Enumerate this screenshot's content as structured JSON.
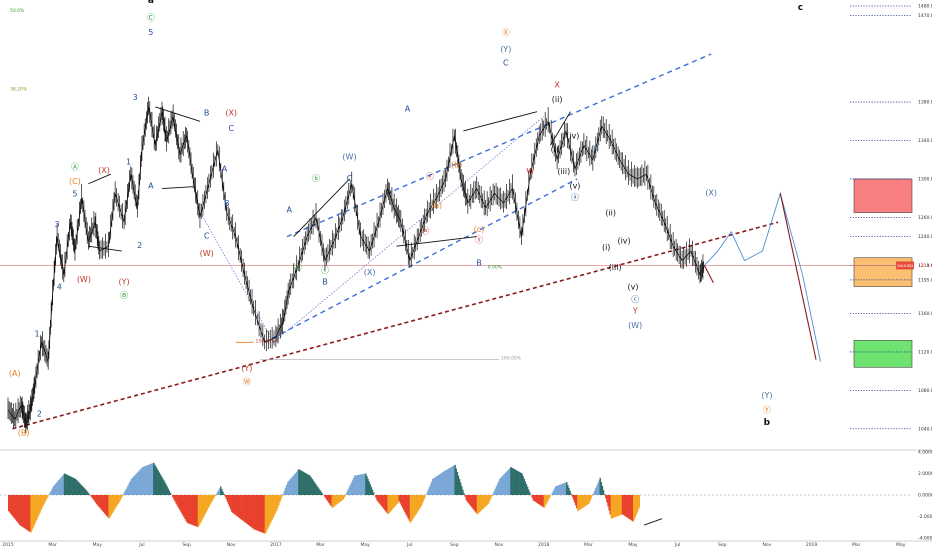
{
  "chart_data": {
    "type": "candlestick",
    "symbol_tag": "XAUUSD",
    "last_price_label": "1211.65",
    "price_axis": {
      "ylim": [
        1020,
        1480
      ],
      "ticks": [
        {
          "v": 1480,
          "label": "1480.00"
        },
        {
          "v": 1470,
          "label": "1470.00"
        },
        {
          "v": 1380,
          "label": "1380.00"
        },
        {
          "v": 1340,
          "label": "1340.00"
        },
        {
          "v": 1300,
          "label": "1300.00"
        },
        {
          "v": 1260,
          "label": "1260.00"
        },
        {
          "v": 1240,
          "label": "1240.00"
        },
        {
          "v": 1210,
          "label": "1210.00"
        },
        {
          "v": 1195,
          "label": "1195.00"
        },
        {
          "v": 1160,
          "label": "1160.00"
        },
        {
          "v": 1120,
          "label": "1120.00"
        },
        {
          "v": 1080,
          "label": "1080.00"
        },
        {
          "v": 1040,
          "label": "1040.00"
        }
      ]
    },
    "time_axis": [
      {
        "t": 0,
        "label": "2015"
      },
      {
        "t": 2,
        "label": "Mar"
      },
      {
        "t": 4,
        "label": "May"
      },
      {
        "t": 6,
        "label": "Jul"
      },
      {
        "t": 8,
        "label": "Sep"
      },
      {
        "t": 10,
        "label": "Nov"
      },
      {
        "t": 12,
        "label": "2017"
      },
      {
        "t": 14,
        "label": "Mar"
      },
      {
        "t": 16,
        "label": "May"
      },
      {
        "t": 18,
        "label": "Jul"
      },
      {
        "t": 20,
        "label": "Sep"
      },
      {
        "t": 22,
        "label": "Nov"
      },
      {
        "t": 24,
        "label": "2018"
      },
      {
        "t": 26,
        "label": "Mar"
      },
      {
        "t": 28,
        "label": "May"
      },
      {
        "t": 30,
        "label": "Jul"
      },
      {
        "t": 32,
        "label": "Sep"
      },
      {
        "t": 34,
        "label": "Nov"
      },
      {
        "t": 36,
        "label": "2019"
      },
      {
        "t": 38,
        "label": "Mar"
      },
      {
        "t": 40,
        "label": "May"
      }
    ],
    "price_path": [
      [
        0,
        1060
      ],
      [
        0.3,
        1050
      ],
      [
        0.6,
        1064
      ],
      [
        0.8,
        1045
      ],
      [
        1.0,
        1060
      ],
      [
        1.2,
        1085
      ],
      [
        1.5,
        1130
      ],
      [
        1.8,
        1110
      ],
      [
        2.0,
        1180
      ],
      [
        2.2,
        1240
      ],
      [
        2.5,
        1200
      ],
      [
        2.8,
        1255
      ],
      [
        3.0,
        1225
      ],
      [
        3.3,
        1280
      ],
      [
        3.6,
        1235
      ],
      [
        3.9,
        1255
      ],
      [
        4.1,
        1225
      ],
      [
        4.5,
        1230
      ],
      [
        4.8,
        1285
      ],
      [
        5.2,
        1255
      ],
      [
        5.5,
        1305
      ],
      [
        5.8,
        1270
      ],
      [
        6.0,
        1330
      ],
      [
        6.3,
        1375
      ],
      [
        6.6,
        1335
      ],
      [
        6.9,
        1370
      ],
      [
        7.1,
        1340
      ],
      [
        7.4,
        1365
      ],
      [
        7.7,
        1325
      ],
      [
        8.0,
        1345
      ],
      [
        8.3,
        1300
      ],
      [
        8.6,
        1260
      ],
      [
        9.0,
        1295
      ],
      [
        9.4,
        1330
      ],
      [
        9.8,
        1265
      ],
      [
        10.2,
        1240
      ],
      [
        10.6,
        1200
      ],
      [
        11.0,
        1165
      ],
      [
        11.5,
        1130
      ],
      [
        12.0,
        1135
      ],
      [
        12.3,
        1150
      ],
      [
        12.6,
        1185
      ],
      [
        13.0,
        1210
      ],
      [
        13.4,
        1240
      ],
      [
        13.8,
        1260
      ],
      [
        14.2,
        1215
      ],
      [
        14.6,
        1235
      ],
      [
        15.0,
        1260
      ],
      [
        15.4,
        1295
      ],
      [
        15.8,
        1240
      ],
      [
        16.2,
        1225
      ],
      [
        16.6,
        1255
      ],
      [
        17.0,
        1290
      ],
      [
        17.3,
        1270
      ],
      [
        17.6,
        1255
      ],
      [
        18.0,
        1215
      ],
      [
        18.4,
        1240
      ],
      [
        18.8,
        1265
      ],
      [
        19.2,
        1280
      ],
      [
        19.6,
        1300
      ],
      [
        20.0,
        1345
      ],
      [
        20.3,
        1300
      ],
      [
        20.6,
        1275
      ],
      [
        21.0,
        1290
      ],
      [
        21.4,
        1270
      ],
      [
        21.8,
        1285
      ],
      [
        22.2,
        1275
      ],
      [
        22.6,
        1290
      ],
      [
        23.0,
        1240
      ],
      [
        23.4,
        1305
      ],
      [
        23.8,
        1345
      ],
      [
        24.2,
        1360
      ],
      [
        24.6,
        1320
      ],
      [
        25.0,
        1350
      ],
      [
        25.4,
        1310
      ],
      [
        25.8,
        1335
      ],
      [
        26.2,
        1320
      ],
      [
        26.6,
        1355
      ],
      [
        27.0,
        1340
      ],
      [
        27.4,
        1320
      ],
      [
        27.8,
        1305
      ],
      [
        28.2,
        1300
      ],
      [
        28.6,
        1305
      ],
      [
        29.0,
        1275
      ],
      [
        29.4,
        1255
      ],
      [
        29.8,
        1230
      ],
      [
        30.2,
        1215
      ],
      [
        30.6,
        1225
      ],
      [
        31.0,
        1200
      ],
      [
        31.2,
        1210
      ]
    ],
    "elliott_labels": [
      {
        "text": "a",
        "t": 6.4,
        "p": 1483,
        "color": "#111",
        "bold": true
      },
      {
        "text": "Ⓒ",
        "t": 6.4,
        "p": 1465,
        "color": "#2e9e3b"
      },
      {
        "text": "5",
        "t": 6.4,
        "p": 1450,
        "color": "#1f4c9a"
      },
      {
        "text": "3",
        "t": 5.7,
        "p": 1382,
        "color": "#1f4c9a"
      },
      {
        "text": "B",
        "t": 8.9,
        "p": 1366,
        "color": "#1f4c9a"
      },
      {
        "text": "(X)",
        "t": 10.0,
        "p": 1366,
        "color": "#c0392b"
      },
      {
        "text": "C",
        "t": 10.0,
        "p": 1350,
        "color": "#1f4c9a"
      },
      {
        "text": "1",
        "t": 5.4,
        "p": 1315,
        "color": "#1f4c9a"
      },
      {
        "text": "A",
        "t": 6.4,
        "p": 1290,
        "color": "#1f4c9a"
      },
      {
        "text": "A",
        "t": 9.7,
        "p": 1308,
        "color": "#1f4c9a"
      },
      {
        "text": "B",
        "t": 9.8,
        "p": 1272,
        "color": "#1f4c9a"
      },
      {
        "text": "C",
        "t": 8.9,
        "p": 1238,
        "color": "#1f4c9a"
      },
      {
        "text": "(W)",
        "t": 8.9,
        "p": 1220,
        "color": "#c0392b"
      },
      {
        "text": "Ⓐ",
        "t": 3.0,
        "p": 1310,
        "color": "#2e9e3b"
      },
      {
        "text": "(C)",
        "t": 3.0,
        "p": 1295,
        "color": "#e67e22"
      },
      {
        "text": "5",
        "t": 3.0,
        "p": 1282,
        "color": "#1f4c9a"
      },
      {
        "text": "(X)",
        "t": 4.3,
        "p": 1306,
        "color": "#c0392b"
      },
      {
        "text": "3",
        "t": 2.2,
        "p": 1250,
        "color": "#1f4c9a"
      },
      {
        "text": "2",
        "t": 5.9,
        "p": 1228,
        "color": "#1f4c9a"
      },
      {
        "text": "(W)",
        "t": 3.4,
        "p": 1193,
        "color": "#c0392b"
      },
      {
        "text": "(Y)",
        "t": 5.2,
        "p": 1190,
        "color": "#c0392b"
      },
      {
        "text": "Ⓑ",
        "t": 5.2,
        "p": 1176,
        "color": "#2e9e3b"
      },
      {
        "text": "4",
        "t": 2.3,
        "p": 1185,
        "color": "#1f4c9a"
      },
      {
        "text": "1",
        "t": 1.3,
        "p": 1136,
        "color": "#1f4c9a"
      },
      {
        "text": "(A)",
        "t": 0.3,
        "p": 1095,
        "color": "#e67e22"
      },
      {
        "text": "2",
        "t": 1.4,
        "p": 1053,
        "color": "#1f4c9a"
      },
      {
        "text": "(B)",
        "t": 0.7,
        "p": 1033,
        "color": "#e67e22"
      },
      {
        "text": "(Y)",
        "t": 10.7,
        "p": 1100,
        "color": "#c0392b"
      },
      {
        "text": "Ⓦ",
        "t": 10.7,
        "p": 1086,
        "color": "#e67e22"
      },
      {
        "text": "(W)",
        "t": 15.3,
        "p": 1320,
        "color": "#4a6fa5"
      },
      {
        "text": "C",
        "t": 15.3,
        "p": 1298,
        "color": "#1f4c9a"
      },
      {
        "text": "ⓑ",
        "t": 13.8,
        "p": 1298,
        "color": "#2e9e3b"
      },
      {
        "text": "A",
        "t": 12.6,
        "p": 1265,
        "color": "#1f4c9a"
      },
      {
        "text": "ⓐ",
        "t": 13.0,
        "p": 1205,
        "color": "#2e9e3b"
      },
      {
        "text": "ⓒ",
        "t": 14.2,
        "p": 1202,
        "color": "#2e9e3b"
      },
      {
        "text": "B",
        "t": 14.2,
        "p": 1190,
        "color": "#1f4c9a"
      },
      {
        "text": "(X)",
        "t": 16.2,
        "p": 1200,
        "color": "#4a6fa5"
      },
      {
        "text": "A",
        "t": 17.9,
        "p": 1370,
        "color": "#1f4c9a"
      },
      {
        "text": "ⓧ",
        "t": 18.9,
        "p": 1300,
        "color": "#c0392b"
      },
      {
        "text": "(b)",
        "t": 20.1,
        "p": 1312,
        "color": "#e67e22"
      },
      {
        "text": "ⓦ",
        "t": 18.7,
        "p": 1243,
        "color": "#c0392b"
      },
      {
        "text": "(a)",
        "t": 19.2,
        "p": 1270,
        "color": "#e67e22"
      },
      {
        "text": "(c)",
        "t": 21.1,
        "p": 1245,
        "color": "#e67e22"
      },
      {
        "text": "ⓨ",
        "t": 21.1,
        "p": 1234,
        "color": "#c0392b"
      },
      {
        "text": "B",
        "t": 21.1,
        "p": 1210,
        "color": "#1f4c9a"
      },
      {
        "text": "Ⓧ",
        "t": 22.3,
        "p": 1450,
        "color": "#e67e22"
      },
      {
        "text": "(Y)",
        "t": 22.3,
        "p": 1432,
        "color": "#4a6fa5"
      },
      {
        "text": "C",
        "t": 22.3,
        "p": 1418,
        "color": "#1f4c9a"
      },
      {
        "text": "W",
        "t": 23.4,
        "p": 1305,
        "color": "#c0392b"
      },
      {
        "text": "X",
        "t": 24.6,
        "p": 1395,
        "color": "#c0392b"
      },
      {
        "text": "(ii)",
        "t": 24.6,
        "p": 1380,
        "color": "#111"
      },
      {
        "text": "(iv)",
        "t": 25.3,
        "p": 1342,
        "color": "#111"
      },
      {
        "text": "(i)",
        "t": 24.5,
        "p": 1328,
        "color": "#111"
      },
      {
        "text": "(iii)",
        "t": 24.9,
        "p": 1305,
        "color": "#111"
      },
      {
        "text": "(v)",
        "t": 25.4,
        "p": 1290,
        "color": "#111"
      },
      {
        "text": "ⓐ",
        "t": 25.4,
        "p": 1278,
        "color": "#1f4c9a"
      },
      {
        "text": "ⓑ",
        "t": 26.3,
        "p": 1328,
        "color": "#1f4c9a"
      },
      {
        "text": "(ii)",
        "t": 27.0,
        "p": 1262,
        "color": "#111"
      },
      {
        "text": "(iv)",
        "t": 27.6,
        "p": 1233,
        "color": "#111"
      },
      {
        "text": "(i)",
        "t": 26.8,
        "p": 1226,
        "color": "#111"
      },
      {
        "text": "(iii)",
        "t": 27.2,
        "p": 1205,
        "color": "#111"
      },
      {
        "text": "(v)",
        "t": 28.0,
        "p": 1185,
        "color": "#111"
      },
      {
        "text": "ⓒ",
        "t": 28.1,
        "p": 1172,
        "color": "#1f4c9a"
      },
      {
        "text": "Y",
        "t": 28.1,
        "p": 1160,
        "color": "#c0392b"
      },
      {
        "text": "(W)",
        "t": 28.1,
        "p": 1145,
        "color": "#4a6fa5"
      },
      {
        "text": "(X)",
        "t": 31.5,
        "p": 1283,
        "color": "#4a6fa5"
      },
      {
        "text": "(Y)",
        "t": 34.0,
        "p": 1072,
        "color": "#4a6fa5"
      },
      {
        "text": "Ⓨ",
        "t": 34.0,
        "p": 1057,
        "color": "#e67e22"
      },
      {
        "text": "b",
        "t": 34.0,
        "p": 1044,
        "color": "#111",
        "bold": true
      },
      {
        "text": "c",
        "t": 35.5,
        "p": 1476,
        "color": "#111",
        "bold": true
      }
    ],
    "fib_labels": [
      {
        "text": "50.0%",
        "t": 0.0,
        "p": 1474,
        "color": "#2e9e3b"
      },
      {
        "text": "38.20%",
        "t": 0.0,
        "p": 1392,
        "color": "#8a9a2e"
      },
      {
        "text": "150.00%",
        "t": 11.0,
        "p": 1130,
        "color": "#c0392b"
      },
      {
        "text": "100.00%",
        "t": 22.0,
        "p": 1112,
        "color": "#999"
      },
      {
        "text": "0.00%",
        "t": 21.4,
        "p": 1207,
        "color": "#2e9e3b"
      }
    ],
    "oscillator": {
      "ylim": [
        -4,
        4
      ],
      "ticks": [
        {
          "v": 4,
          "label": "4.0000"
        },
        {
          "v": 2,
          "label": "2.0000"
        },
        {
          "v": 0,
          "label": "0.0000"
        },
        {
          "v": -2,
          "label": "-2.0000"
        },
        {
          "v": -4,
          "label": "-4.0000"
        }
      ],
      "values": [
        [
          0,
          -1.5
        ],
        [
          0.5,
          -2.8
        ],
        [
          1.0,
          -3.5
        ],
        [
          1.5,
          -1.2
        ],
        [
          2.0,
          0.8
        ],
        [
          2.5,
          2.0
        ],
        [
          3.0,
          1.5
        ],
        [
          3.5,
          0.4
        ],
        [
          4.0,
          -1.0
        ],
        [
          4.5,
          -2.2
        ],
        [
          5.0,
          -0.5
        ],
        [
          5.5,
          1.5
        ],
        [
          6.0,
          2.6
        ],
        [
          6.5,
          3.0
        ],
        [
          7.0,
          1.2
        ],
        [
          7.5,
          -0.8
        ],
        [
          8.0,
          -2.6
        ],
        [
          8.5,
          -3.0
        ],
        [
          9.0,
          -1.0
        ],
        [
          9.5,
          0.8
        ],
        [
          10.0,
          -1.6
        ],
        [
          10.5,
          -2.4
        ],
        [
          11.0,
          -3.2
        ],
        [
          11.5,
          -3.6
        ],
        [
          12.0,
          -1.5
        ],
        [
          12.5,
          1.2
        ],
        [
          13.0,
          2.4
        ],
        [
          13.5,
          1.8
        ],
        [
          14.0,
          0.3
        ],
        [
          14.5,
          -1.2
        ],
        [
          15.0,
          -0.4
        ],
        [
          15.5,
          1.8
        ],
        [
          16.0,
          2.0
        ],
        [
          16.5,
          -0.5
        ],
        [
          17.0,
          -1.8
        ],
        [
          17.5,
          -0.6
        ],
        [
          18.0,
          -2.6
        ],
        [
          18.5,
          -1.0
        ],
        [
          19.0,
          1.5
        ],
        [
          19.5,
          2.2
        ],
        [
          20.0,
          2.8
        ],
        [
          20.5,
          -0.5
        ],
        [
          21.0,
          -1.8
        ],
        [
          21.5,
          -0.8
        ],
        [
          22.0,
          1.5
        ],
        [
          22.5,
          2.6
        ],
        [
          23.0,
          2.0
        ],
        [
          23.5,
          -0.5
        ],
        [
          24.0,
          -1.2
        ],
        [
          24.5,
          0.8
        ],
        [
          25.0,
          1.2
        ],
        [
          25.5,
          -1.5
        ],
        [
          26.0,
          -0.8
        ],
        [
          26.5,
          1.6
        ],
        [
          27.0,
          -2.2
        ],
        [
          27.5,
          -1.8
        ],
        [
          28.0,
          -2.5
        ],
        [
          28.3,
          -1.0
        ]
      ]
    },
    "targets": [
      {
        "name": "red-target-zone",
        "top": 1300,
        "bottom": 1265,
        "fill": "#f77f7f"
      },
      {
        "name": "orange-target-zone",
        "top": 1218,
        "bottom": 1188,
        "fill": "#fbbf72"
      },
      {
        "name": "green-target-zone",
        "top": 1132,
        "bottom": 1104,
        "fill": "#6fe36f"
      }
    ]
  }
}
